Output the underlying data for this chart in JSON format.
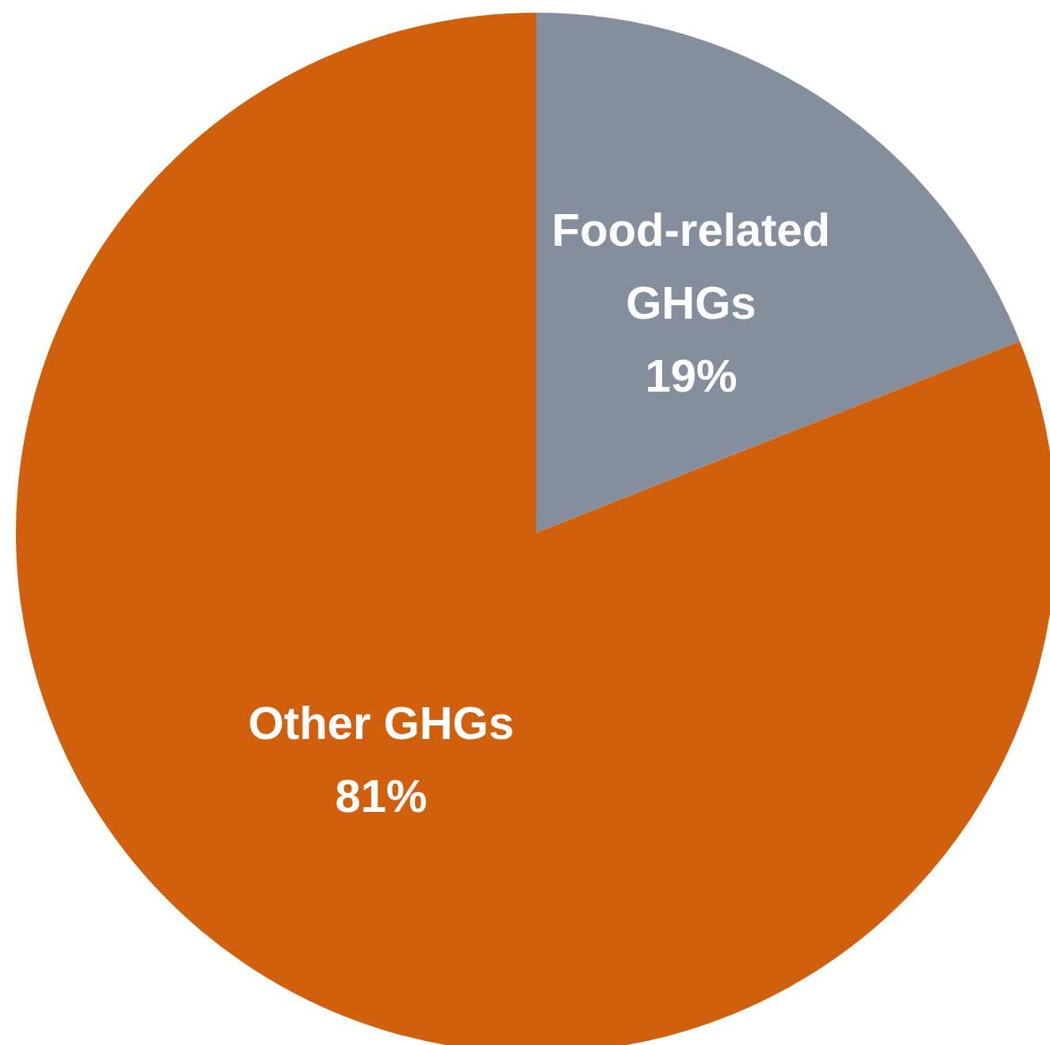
{
  "chart_data": {
    "type": "pie",
    "categories": [
      "Food-related GHGs",
      "Other GHGs"
    ],
    "values": [
      19,
      81
    ],
    "colors": [
      "#858e9c",
      "#d0600e"
    ],
    "value_labels": [
      "19%",
      "81%"
    ]
  }
}
